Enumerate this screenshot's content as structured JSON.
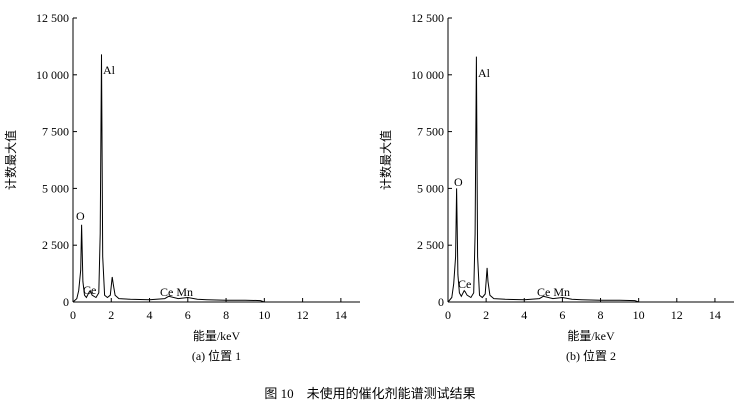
{
  "caption": "图 10　未使用的催化剂能谱测试结果",
  "chart_data": [
    {
      "type": "line",
      "subtitle": "(a) 位置 1",
      "xlabel": "能量/keV",
      "ylabel": "计数最大值",
      "annotations": [
        "O",
        "Al",
        "Ce",
        "Ce Mn"
      ],
      "color": "#000000",
      "xlim": [
        0,
        15
      ],
      "xticks": [
        0,
        2,
        4,
        6,
        8,
        10,
        12,
        14
      ],
      "ylim": [
        0,
        12500
      ],
      "yticks": [
        0,
        {
          "value": 2500,
          "label": "2 500"
        },
        {
          "value": 5000,
          "label": "5 000"
        },
        {
          "value": 7500,
          "label": "7 500"
        },
        {
          "value": 10000,
          "label": "10 000"
        },
        {
          "value": 12500,
          "label": "12 500"
        }
      ],
      "x": [
        0,
        0.2,
        0.3,
        0.4,
        0.45,
        0.52,
        0.6,
        0.7,
        0.85,
        0.9,
        1.0,
        1.2,
        1.35,
        1.42,
        1.49,
        1.55,
        1.65,
        1.8,
        1.95,
        2.05,
        2.1,
        2.2,
        2.4,
        3,
        4,
        4.8,
        5,
        5.5,
        6,
        6.5,
        7,
        8,
        9,
        9.8,
        10
      ],
      "values": [
        0,
        150,
        500,
        1400,
        3400,
        900,
        300,
        200,
        450,
        500,
        300,
        200,
        400,
        3000,
        10900,
        2000,
        300,
        200,
        300,
        1100,
        800,
        300,
        150,
        120,
        100,
        150,
        250,
        150,
        200,
        120,
        100,
        80,
        80,
        60,
        0
      ]
    },
    {
      "type": "line",
      "subtitle": "(b) 位置 2",
      "xlabel": "能量/keV",
      "ylabel": "计数最大值",
      "annotations": [
        "O",
        "Al",
        "Ce",
        "Ce Mn"
      ],
      "color": "#000000",
      "xlim": [
        0,
        15
      ],
      "xticks": [
        0,
        2,
        4,
        6,
        8,
        10,
        12,
        14
      ],
      "ylim": [
        0,
        12500
      ],
      "yticks": [
        0,
        {
          "value": 2500,
          "label": "2 500"
        },
        {
          "value": 5000,
          "label": "5 000"
        },
        {
          "value": 7500,
          "label": "7 500"
        },
        {
          "value": 10000,
          "label": "10 000"
        },
        {
          "value": 12500,
          "label": "12 500"
        }
      ],
      "x": [
        0,
        0.2,
        0.3,
        0.4,
        0.45,
        0.52,
        0.6,
        0.7,
        0.85,
        0.9,
        1.0,
        1.2,
        1.35,
        1.42,
        1.49,
        1.55,
        1.65,
        1.8,
        1.95,
        2.05,
        2.1,
        2.2,
        2.4,
        3,
        4,
        4.8,
        5,
        5.5,
        6,
        6.5,
        7,
        8,
        9,
        9.8,
        10
      ],
      "values": [
        0,
        200,
        800,
        2000,
        5000,
        1200,
        400,
        250,
        500,
        450,
        300,
        200,
        400,
        3000,
        10800,
        2000,
        300,
        200,
        350,
        1500,
        900,
        300,
        150,
        120,
        100,
        150,
        250,
        150,
        200,
        120,
        100,
        80,
        80,
        60,
        0
      ]
    }
  ]
}
